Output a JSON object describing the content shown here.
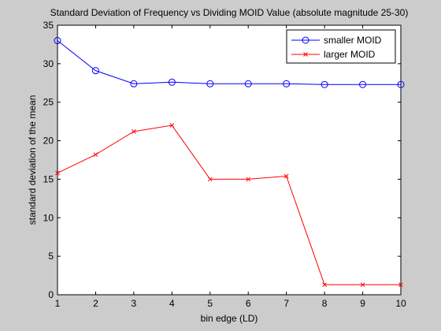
{
  "chart_data": {
    "type": "line",
    "title": "Standard Deviation of Frequency vs Dividing MOID Value (absolute magnitude 25-30)",
    "xlabel": "bin edge (LD)",
    "ylabel": "standard deviation of the mean",
    "xlim": [
      1,
      10
    ],
    "ylim": [
      0,
      35
    ],
    "xticks": [
      "1",
      "2",
      "3",
      "4",
      "5",
      "6",
      "7",
      "8",
      "9",
      "10"
    ],
    "yticks": [
      "0",
      "5",
      "10",
      "15",
      "20",
      "25",
      "30",
      "35"
    ],
    "grid": false,
    "legend_position": "top-right",
    "x": [
      1,
      2,
      3,
      4,
      5,
      6,
      7,
      8,
      9,
      10
    ],
    "series": [
      {
        "name": "smaller MOID",
        "values": [
          33.0,
          29.1,
          27.4,
          27.6,
          27.4,
          27.4,
          27.4,
          27.3,
          27.3,
          27.3
        ],
        "color": "#0000ff",
        "marker": "circle"
      },
      {
        "name": "larger MOID",
        "values": [
          15.8,
          18.2,
          21.2,
          22.0,
          15.0,
          15.0,
          15.4,
          1.3,
          1.3,
          1.3
        ],
        "color": "#ff0000",
        "marker": "x"
      }
    ]
  }
}
